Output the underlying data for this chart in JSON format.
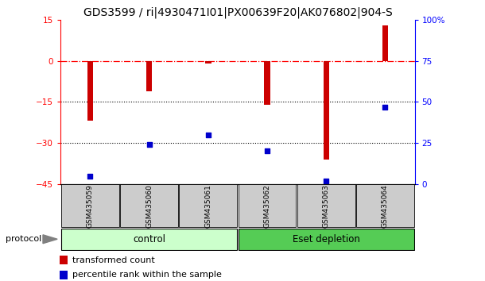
{
  "title": "GDS3599 / ri|4930471I01|PX00639F20|AK076802|904-S",
  "categories": [
    "GSM435059",
    "GSM435060",
    "GSM435061",
    "GSM435062",
    "GSM435063",
    "GSM435064"
  ],
  "red_values": [
    -22,
    -11,
    -1,
    -16,
    -36,
    13
  ],
  "blue_values": [
    5,
    24,
    30,
    20,
    2,
    47
  ],
  "left_ylim": [
    -45,
    15
  ],
  "right_ylim": [
    0,
    100
  ],
  "left_yticks": [
    15,
    0,
    -15,
    -30,
    -45
  ],
  "right_yticks": [
    100,
    75,
    50,
    25,
    0
  ],
  "right_yticklabels": [
    "100%",
    "75",
    "50",
    "25",
    "0"
  ],
  "dotted_lines": [
    -15,
    -30
  ],
  "bar_color": "#cc0000",
  "dot_color": "#0000cc",
  "background_color": "#ffffff",
  "plot_bg_color": "#ffffff",
  "group1_label": "control",
  "group2_label": "Eset depletion",
  "group1_indices": [
    0,
    1,
    2
  ],
  "group2_indices": [
    3,
    4,
    5
  ],
  "group1_color": "#ccffcc",
  "group2_color": "#55cc55",
  "protocol_label": "protocol",
  "legend1_label": "transformed count",
  "legend2_label": "percentile rank within the sample",
  "bar_width": 0.1,
  "title_fontsize": 10,
  "tick_fontsize": 7.5,
  "label_fontsize": 8,
  "group_label_fontsize": 8.5,
  "tick_label_fontsize": 6.5
}
